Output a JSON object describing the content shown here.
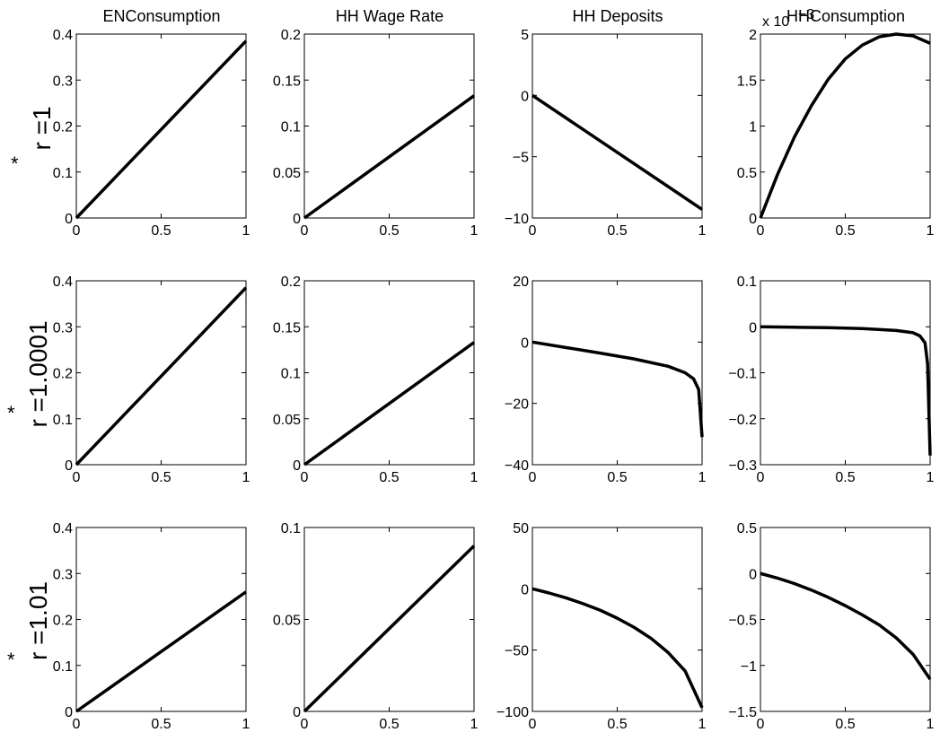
{
  "column_titles": [
    "ENConsumption",
    "HH Wage Rate",
    "HH Deposits",
    "HHConsumption"
  ],
  "row_labels": [
    {
      "star": "*",
      "text": "r =1"
    },
    {
      "star": "*",
      "text": "r =1.0001"
    },
    {
      "star": "*",
      "text": "r =1.01"
    }
  ],
  "exponent_label": "x 10",
  "chart_data": [
    {
      "type": "line",
      "row": 0,
      "col": 0,
      "xlim": [
        0,
        1
      ],
      "ylim": [
        0,
        0.4
      ],
      "xticks": [
        "0",
        "0.5",
        "1"
      ],
      "yticks": [
        "0",
        "0.1",
        "0.2",
        "0.3",
        "0.4"
      ],
      "x": [
        0,
        1
      ],
      "y": [
        0,
        0.385
      ]
    },
    {
      "type": "line",
      "row": 0,
      "col": 1,
      "xlim": [
        0,
        1
      ],
      "ylim": [
        0,
        0.2
      ],
      "xticks": [
        "0",
        "0.5",
        "1"
      ],
      "yticks": [
        "0",
        "0.05",
        "0.1",
        "0.15",
        "0.2"
      ],
      "x": [
        0,
        1
      ],
      "y": [
        0,
        0.133
      ]
    },
    {
      "type": "line",
      "row": 0,
      "col": 2,
      "xlim": [
        0,
        1
      ],
      "ylim": [
        -10,
        5
      ],
      "xticks": [
        "0",
        "0.5",
        "1"
      ],
      "yticks": [
        "-10",
        "-5",
        "0",
        "5"
      ],
      "x": [
        0,
        1
      ],
      "y": [
        0,
        -9.3
      ]
    },
    {
      "type": "line",
      "row": 0,
      "col": 3,
      "xlim": [
        0,
        1
      ],
      "ylim": [
        0,
        2
      ],
      "xticks": [
        "0",
        "0.5",
        "1"
      ],
      "yticks": [
        "0",
        "0.5",
        "1",
        "1.5",
        "2"
      ],
      "exponent": "-3",
      "x": [
        0,
        0.1,
        0.2,
        0.3,
        0.4,
        0.5,
        0.6,
        0.7,
        0.8,
        0.9,
        1.0
      ],
      "y": [
        0,
        0.47,
        0.88,
        1.22,
        1.51,
        1.73,
        1.88,
        1.97,
        2.0,
        1.98,
        1.9
      ]
    },
    {
      "type": "line",
      "row": 1,
      "col": 0,
      "xlim": [
        0,
        1
      ],
      "ylim": [
        0,
        0.4
      ],
      "xticks": [
        "0",
        "0.5",
        "1"
      ],
      "yticks": [
        "0",
        "0.1",
        "0.2",
        "0.3",
        "0.4"
      ],
      "x": [
        0,
        1
      ],
      "y": [
        0,
        0.385
      ]
    },
    {
      "type": "line",
      "row": 1,
      "col": 1,
      "xlim": [
        0,
        1
      ],
      "ylim": [
        0,
        0.2
      ],
      "xticks": [
        "0",
        "0.5",
        "1"
      ],
      "yticks": [
        "0",
        "0.05",
        "0.1",
        "0.15",
        "0.2"
      ],
      "x": [
        0,
        1
      ],
      "y": [
        0,
        0.133
      ]
    },
    {
      "type": "line",
      "row": 1,
      "col": 2,
      "xlim": [
        0,
        1
      ],
      "ylim": [
        -40,
        20
      ],
      "xticks": [
        "0",
        "0.5",
        "1"
      ],
      "yticks": [
        "-40",
        "-20",
        "0",
        "20"
      ],
      "x": [
        0,
        0.2,
        0.4,
        0.6,
        0.8,
        0.9,
        0.95,
        0.98,
        1.0
      ],
      "y": [
        0,
        -1.8,
        -3.6,
        -5.5,
        -7.9,
        -10.0,
        -12.0,
        -15.5,
        -31
      ]
    },
    {
      "type": "line",
      "row": 1,
      "col": 3,
      "xlim": [
        0,
        1
      ],
      "ylim": [
        -0.3,
        0.1
      ],
      "xticks": [
        "0",
        "0.5",
        "1"
      ],
      "yticks": [
        "-0.3",
        "-0.2",
        "-0.1",
        "0",
        "0.1"
      ],
      "x": [
        0,
        0.2,
        0.4,
        0.6,
        0.8,
        0.9,
        0.94,
        0.97,
        0.985,
        1.0
      ],
      "y": [
        0,
        -0.001,
        -0.002,
        -0.004,
        -0.008,
        -0.013,
        -0.02,
        -0.035,
        -0.08,
        -0.28
      ]
    },
    {
      "type": "line",
      "row": 2,
      "col": 0,
      "xlim": [
        0,
        1
      ],
      "ylim": [
        0,
        0.4
      ],
      "xticks": [
        "0",
        "0.5",
        "1"
      ],
      "yticks": [
        "0",
        "0.1",
        "0.2",
        "0.3",
        "0.4"
      ],
      "x": [
        0,
        1
      ],
      "y": [
        0,
        0.26
      ]
    },
    {
      "type": "line",
      "row": 2,
      "col": 1,
      "xlim": [
        0,
        1
      ],
      "ylim": [
        0,
        0.1
      ],
      "xticks": [
        "0",
        "0.5",
        "1"
      ],
      "yticks": [
        "0",
        "0.05",
        "0.1"
      ],
      "x": [
        0,
        1
      ],
      "y": [
        0,
        0.09
      ]
    },
    {
      "type": "line",
      "row": 2,
      "col": 2,
      "xlim": [
        0,
        1
      ],
      "ylim": [
        -100,
        50
      ],
      "xticks": [
        "0",
        "0.5",
        "1"
      ],
      "yticks": [
        "-100",
        "-50",
        "0",
        "50"
      ],
      "x": [
        0,
        0.1,
        0.2,
        0.3,
        0.4,
        0.5,
        0.6,
        0.7,
        0.8,
        0.9,
        1.0
      ],
      "y": [
        0,
        -3.5,
        -7.5,
        -12.2,
        -17.5,
        -24,
        -31.5,
        -40.5,
        -52,
        -67,
        -97
      ]
    },
    {
      "type": "line",
      "row": 2,
      "col": 3,
      "xlim": [
        0,
        1
      ],
      "ylim": [
        -1.5,
        0.5
      ],
      "xticks": [
        "0",
        "0.5",
        "1"
      ],
      "yticks": [
        "-1.5",
        "-1",
        "-0.5",
        "0",
        "0.5"
      ],
      "x": [
        0,
        0.1,
        0.2,
        0.3,
        0.4,
        0.5,
        0.6,
        0.7,
        0.8,
        0.9,
        1.0
      ],
      "y": [
        0,
        -0.05,
        -0.11,
        -0.18,
        -0.26,
        -0.35,
        -0.45,
        -0.56,
        -0.7,
        -0.88,
        -1.15
      ]
    }
  ]
}
